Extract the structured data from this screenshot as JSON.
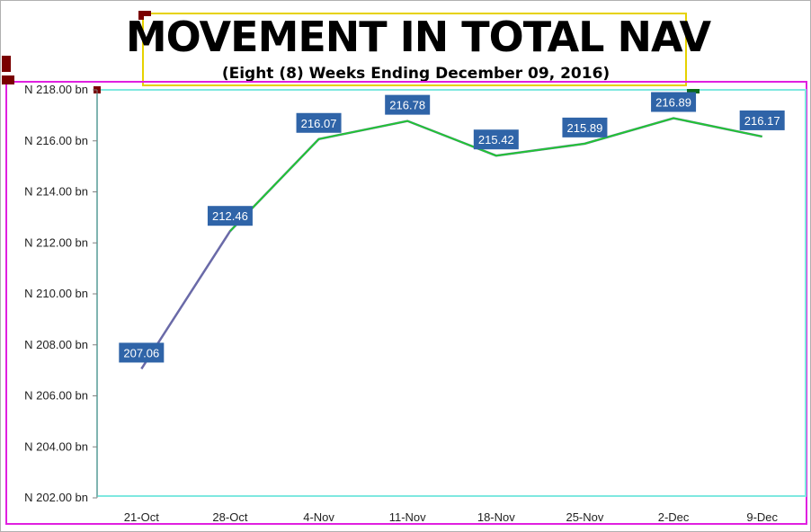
{
  "colors": {
    "line_main": "#6a6aa8",
    "line_overlay": "#22c533",
    "label_bg": "#2f64a8",
    "label_text": "#ffffff"
  },
  "chart_data": {
    "type": "line",
    "title": "MOVEMENT IN TOTAL NAV",
    "subtitle": "(Eight (8) Weeks Ending December 09, 2016)",
    "xlabel": "",
    "ylabel": "",
    "categories": [
      "21-Oct",
      "28-Oct",
      "4-Nov",
      "11-Nov",
      "18-Nov",
      "25-Nov",
      "2-Dec",
      "9-Dec"
    ],
    "series": [
      {
        "values": [
          207.06,
          212.46,
          216.07,
          216.78,
          215.42,
          215.89,
          216.89,
          216.17
        ]
      }
    ],
    "data_labels": [
      "207.06",
      "212.46",
      "216.07",
      "216.78",
      "215.42",
      "215.89",
      "216.89",
      "216.17"
    ],
    "ylim": [
      202,
      218
    ],
    "yticks": [
      202,
      204,
      206,
      208,
      210,
      212,
      214,
      216,
      218
    ],
    "ytick_labels": [
      "N 202.00 bn",
      "N 204.00 bn",
      "N 206.00 bn",
      "N 208.00 bn",
      "N 210.00 bn",
      "N 212.00 bn",
      "N 214.00 bn",
      "N 216.00 bn",
      "N 218.00 bn"
    ],
    "grid": false,
    "legend": "none"
  }
}
